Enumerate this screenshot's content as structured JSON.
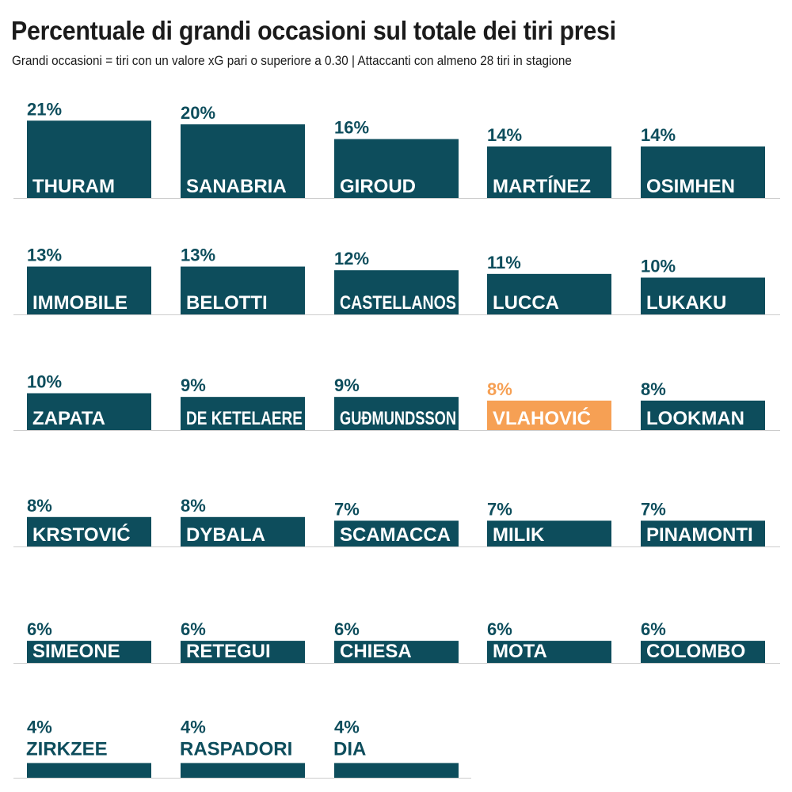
{
  "title": "Percentuale di grandi occasioni sul totale dei tiri presi",
  "subtitle": "Grandi occasioni = tiri con un valore xG pari o superiore a 0.30 | Attaccanti con almeno 28 tiri in stagione",
  "colors": {
    "bar": "#0d4d5c",
    "highlight": "#f6a054",
    "baseline": "#cccccc",
    "label_on_bar": "#ffffff"
  },
  "chart_data": {
    "type": "bar",
    "layout": "small-multiples",
    "value_unit": "%",
    "series": [
      {
        "name": "THURAM",
        "value": 21,
        "label": "21%"
      },
      {
        "name": "SANABRIA",
        "value": 20,
        "label": "20%"
      },
      {
        "name": "GIROUD",
        "value": 16,
        "label": "16%"
      },
      {
        "name": "MARTÍNEZ",
        "value": 14,
        "label": "14%"
      },
      {
        "name": "OSIMHEN",
        "value": 14,
        "label": "14%"
      },
      {
        "name": "IMMOBILE",
        "value": 13,
        "label": "13%"
      },
      {
        "name": "BELOTTI",
        "value": 13,
        "label": "13%"
      },
      {
        "name": "CASTELLANOS",
        "value": 12,
        "label": "12%"
      },
      {
        "name": "LUCCA",
        "value": 11,
        "label": "11%"
      },
      {
        "name": "LUKAKU",
        "value": 10,
        "label": "10%"
      },
      {
        "name": "ZAPATA",
        "value": 10,
        "label": "10%"
      },
      {
        "name": "DE KETELAERE",
        "value": 9,
        "label": "9%"
      },
      {
        "name": "GUÐMUNDSSON",
        "value": 9,
        "label": "9%"
      },
      {
        "name": "VLAHOVIĆ",
        "value": 8,
        "label": "8%",
        "highlight": true
      },
      {
        "name": "LOOKMAN",
        "value": 8,
        "label": "8%"
      },
      {
        "name": "KRSTOVIĆ",
        "value": 8,
        "label": "8%"
      },
      {
        "name": "DYBALA",
        "value": 8,
        "label": "8%"
      },
      {
        "name": "SCAMACCA",
        "value": 7,
        "label": "7%"
      },
      {
        "name": "MILIK",
        "value": 7,
        "label": "7%"
      },
      {
        "name": "PINAMONTI",
        "value": 7,
        "label": "7%"
      },
      {
        "name": "SIMEONE",
        "value": 6,
        "label": "6%"
      },
      {
        "name": "RETEGUI",
        "value": 6,
        "label": "6%"
      },
      {
        "name": "CHIESA",
        "value": 6,
        "label": "6%"
      },
      {
        "name": "MOTA",
        "value": 6,
        "label": "6%"
      },
      {
        "name": "COLOMBO",
        "value": 6,
        "label": "6%"
      },
      {
        "name": "ZIRKZEE",
        "value": 4,
        "label": "4%"
      },
      {
        "name": "RASPADORI",
        "value": 4,
        "label": "4%"
      },
      {
        "name": "DIA",
        "value": 4,
        "label": "4%"
      }
    ]
  }
}
